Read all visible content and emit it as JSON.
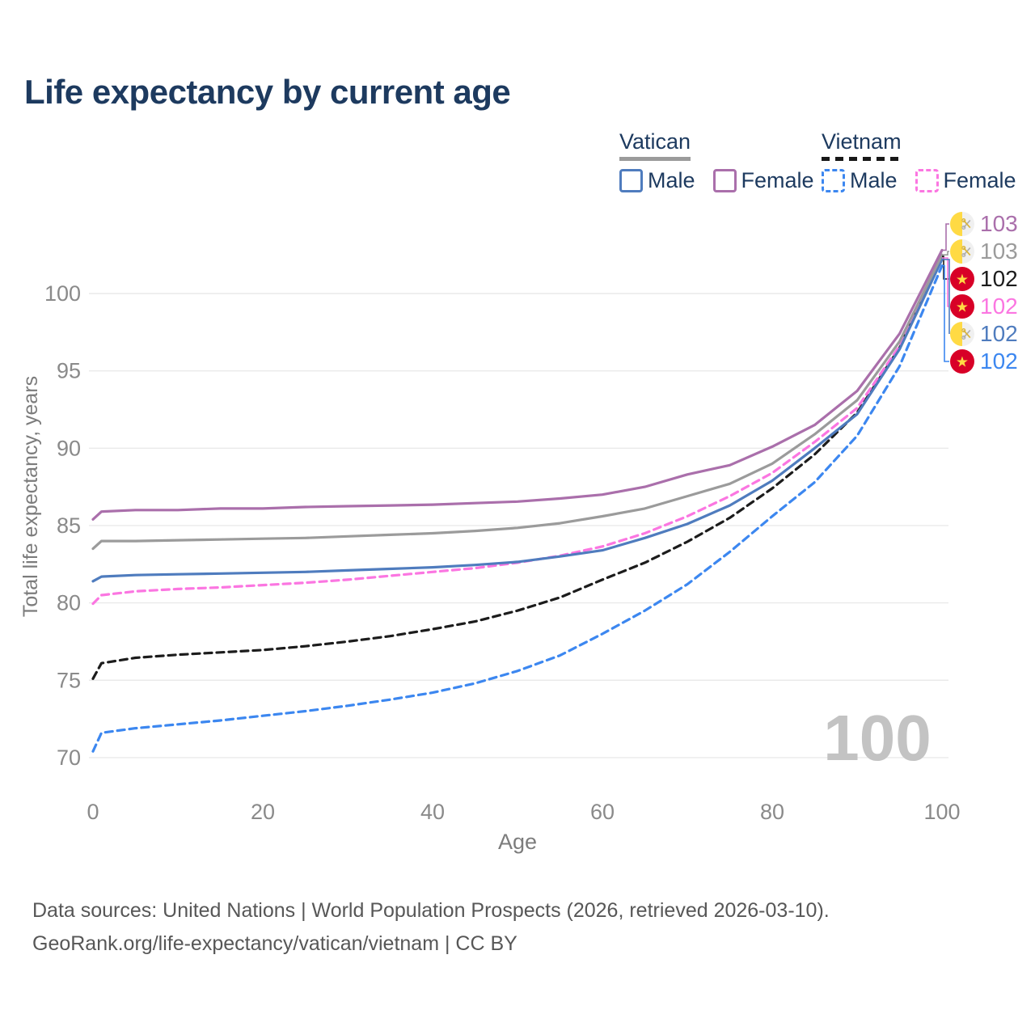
{
  "title": "Life expectancy by current age",
  "watermark": "100",
  "legend": {
    "groups": [
      {
        "label": "Vatican",
        "color": "#9b9b9b",
        "dash": false,
        "items": [
          {
            "label": "Male",
            "color": "#4f7cbe",
            "dash": false
          },
          {
            "label": "Female",
            "color": "#aa6fab",
            "dash": false
          }
        ]
      },
      {
        "label": "Vietnam",
        "color": "#181818",
        "dash": true,
        "items": [
          {
            "label": "Male",
            "color": "#3c87f0",
            "dash": true
          },
          {
            "label": "Female",
            "color": "#fb76e1",
            "dash": true
          }
        ]
      }
    ]
  },
  "endpoint_labels": [
    {
      "flag": "vatican",
      "value": "103",
      "color": "#aa6fab",
      "series": "Vatican Female"
    },
    {
      "flag": "vatican",
      "value": "103",
      "color": "#9b9b9b",
      "series": "Vatican Both sexes"
    },
    {
      "flag": "vietnam",
      "value": "102",
      "color": "#1c1c1c",
      "series": "Vietnam Both sexes"
    },
    {
      "flag": "vietnam",
      "value": "102",
      "color": "#fb76e1",
      "series": "Vietnam Female"
    },
    {
      "flag": "vatican",
      "value": "102",
      "color": "#4f7cbe",
      "series": "Vatican Male"
    },
    {
      "flag": "vietnam",
      "value": "102",
      "color": "#3c87f0",
      "series": "Vietnam Male"
    }
  ],
  "footer": {
    "line1": "Data sources: United Nations | World Population Prospects (2026, retrieved 2026-03-10).",
    "line2": "GeoRank.org/life-expectancy/vatican/vietnam | CC BY"
  },
  "chart_data": {
    "type": "line",
    "title": "Life expectancy by current age",
    "xlabel": "Age",
    "ylabel": "Total life expectancy, years",
    "xlim": [
      0,
      100
    ],
    "ylim": [
      70,
      100
    ],
    "xticks": [
      0,
      20,
      40,
      60,
      80,
      100
    ],
    "yticks": [
      70,
      75,
      80,
      85,
      90,
      95,
      100
    ],
    "grid": "horizontal",
    "legend_position": "top-right",
    "x": [
      0,
      1,
      5,
      10,
      15,
      20,
      25,
      30,
      35,
      40,
      45,
      50,
      55,
      60,
      65,
      70,
      75,
      80,
      85,
      90,
      95,
      100
    ],
    "series": [
      {
        "name": "Vietnam Male",
        "country": "Vietnam",
        "sex": "male",
        "color": "#3c87f0",
        "dash": true,
        "end_label": "102",
        "values": [
          70.4,
          71.6,
          71.9,
          72.15,
          72.4,
          72.7,
          73.0,
          73.35,
          73.75,
          74.2,
          74.8,
          75.6,
          76.6,
          78.0,
          79.5,
          81.2,
          83.3,
          85.6,
          87.8,
          90.8,
          95.3,
          101.8
        ]
      },
      {
        "name": "Vietnam Both sexes",
        "country": "Vietnam",
        "sex": "both",
        "color": "#1c1c1c",
        "dash": true,
        "end_label": "102",
        "values": [
          75.1,
          76.1,
          76.45,
          76.65,
          76.8,
          76.95,
          77.2,
          77.5,
          77.85,
          78.3,
          78.8,
          79.5,
          80.35,
          81.5,
          82.6,
          83.95,
          85.5,
          87.4,
          89.6,
          92.3,
          96.5,
          102.4
        ]
      },
      {
        "name": "Vietnam Female",
        "country": "Vietnam",
        "sex": "female",
        "color": "#fb76e1",
        "dash": true,
        "end_label": "102",
        "values": [
          79.95,
          80.5,
          80.75,
          80.9,
          81.0,
          81.15,
          81.3,
          81.5,
          81.75,
          82.0,
          82.25,
          82.6,
          83.05,
          83.65,
          84.5,
          85.6,
          86.9,
          88.4,
          90.4,
          92.6,
          96.6,
          102.3
        ]
      },
      {
        "name": "Vatican Male",
        "country": "Vatican",
        "sex": "male",
        "color": "#4f7cbe",
        "dash": false,
        "end_label": "102",
        "values": [
          81.4,
          81.7,
          81.8,
          81.85,
          81.9,
          81.95,
          82.0,
          82.1,
          82.2,
          82.3,
          82.45,
          82.65,
          83.0,
          83.4,
          84.2,
          85.1,
          86.3,
          87.9,
          90.0,
          92.2,
          96.4,
          102.2
        ]
      },
      {
        "name": "Vatican Both sexes",
        "country": "Vatican",
        "sex": "both",
        "color": "#9b9b9b",
        "dash": false,
        "end_label": "103",
        "values": [
          83.5,
          84.0,
          84.0,
          84.05,
          84.1,
          84.15,
          84.2,
          84.3,
          84.4,
          84.5,
          84.65,
          84.85,
          85.15,
          85.6,
          86.1,
          86.9,
          87.7,
          89.0,
          90.9,
          93.1,
          96.9,
          102.5
        ]
      },
      {
        "name": "Vatican Female",
        "country": "Vatican",
        "sex": "female",
        "color": "#aa6fab",
        "dash": false,
        "end_label": "103",
        "values": [
          85.4,
          85.9,
          86.0,
          86.0,
          86.1,
          86.1,
          86.2,
          86.25,
          86.3,
          86.35,
          86.45,
          86.55,
          86.75,
          87.0,
          87.5,
          88.3,
          88.9,
          90.1,
          91.5,
          93.7,
          97.4,
          102.8
        ]
      }
    ]
  }
}
